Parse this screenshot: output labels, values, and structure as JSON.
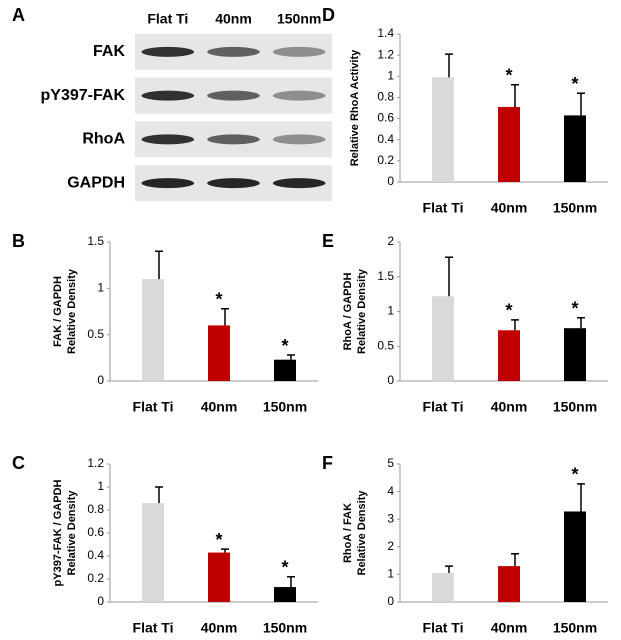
{
  "chart_data": [
    {
      "type": "blot",
      "panel_label": "A",
      "categories": [
        "Flat Ti",
        "40nm",
        "150nm"
      ],
      "rows": [
        "FAK",
        "pY397-FAK",
        "RhoA",
        "GAPDH"
      ]
    },
    {
      "type": "bar",
      "panel_label": "B",
      "ylabel": [
        "FAK / GAPDH",
        "Relative Density"
      ],
      "categories": [
        "Flat Ti",
        "40nm",
        "150nm"
      ],
      "values": [
        1.1,
        0.6,
        0.23
      ],
      "errors": [
        0.3,
        0.18,
        0.05
      ],
      "colors": [
        "#d9d9d9",
        "#c00000",
        "#000000"
      ],
      "annotations": [
        null,
        "*",
        "*"
      ],
      "ylim": [
        0,
        1.5
      ],
      "yticks": [
        0,
        0.5,
        1,
        1.5
      ]
    },
    {
      "type": "bar",
      "panel_label": "C",
      "ylabel": [
        "pY397-FAK / GAPDH",
        "Relative Density"
      ],
      "categories": [
        "Flat Ti",
        "40nm",
        "150nm"
      ],
      "values": [
        0.86,
        0.43,
        0.13
      ],
      "errors": [
        0.14,
        0.03,
        0.09
      ],
      "colors": [
        "#d9d9d9",
        "#c00000",
        "#000000"
      ],
      "annotations": [
        null,
        "*",
        "*"
      ],
      "ylim": [
        0,
        1.2
      ],
      "yticks": [
        0,
        0.2,
        0.4,
        0.6,
        0.8,
        1,
        1.2
      ]
    },
    {
      "type": "bar",
      "panel_label": "D",
      "ylabel": [
        "Relative RhoA Activity"
      ],
      "categories": [
        "Flat Ti",
        "40nm",
        "150nm"
      ],
      "values": [
        0.99,
        0.71,
        0.63
      ],
      "errors": [
        0.22,
        0.21,
        0.21
      ],
      "colors": [
        "#d9d9d9",
        "#c00000",
        "#000000"
      ],
      "annotations": [
        null,
        "*",
        "*"
      ],
      "ylim": [
        0,
        1.4
      ],
      "yticks": [
        0,
        0.2,
        0.4,
        0.6,
        0.8,
        1,
        1.2,
        1.4
      ]
    },
    {
      "type": "bar",
      "panel_label": "E",
      "ylabel": [
        "RhoA / GAPDH",
        "Relative Density"
      ],
      "categories": [
        "Flat Ti",
        "40nm",
        "150nm"
      ],
      "values": [
        1.22,
        0.73,
        0.76
      ],
      "errors": [
        0.56,
        0.15,
        0.15
      ],
      "colors": [
        "#d9d9d9",
        "#c00000",
        "#000000"
      ],
      "annotations": [
        null,
        "*",
        "*"
      ],
      "ylim": [
        0,
        2
      ],
      "yticks": [
        0,
        0.5,
        1,
        1.5,
        2
      ]
    },
    {
      "type": "bar",
      "panel_label": "F",
      "ylabel": [
        "RhoA / FAK",
        "Relative Density"
      ],
      "categories": [
        "Flat Ti",
        "40nm",
        "150nm"
      ],
      "values": [
        1.05,
        1.3,
        3.28
      ],
      "errors": [
        0.25,
        0.45,
        1.0
      ],
      "colors": [
        "#d9d9d9",
        "#c00000",
        "#000000"
      ],
      "annotations": [
        null,
        null,
        "*"
      ],
      "ylim": [
        0,
        5
      ],
      "yticks": [
        0,
        1,
        2,
        3,
        4,
        5
      ]
    }
  ]
}
